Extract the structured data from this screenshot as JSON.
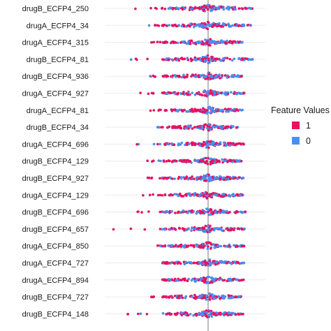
{
  "chart_data": {
    "type": "scatter",
    "subtype": "beeswarm",
    "features": [
      "drugB_ECFP4_250",
      "drugA_ECFP4_34",
      "drugA_ECFP4_315",
      "drugB_ECFP4_81",
      "drugB_ECFP4_936",
      "drugA_ECFP4_927",
      "drugA_ECFP4_81",
      "drugB_ECFP4_34",
      "drugA_ECFP4_696",
      "drugB_ECFP4_129",
      "drugB_ECFP4_927",
      "drugA_ECFP4_129",
      "drugB_ECFP4_696",
      "drugB_ECFP4_657",
      "drugA_ECFP4_850",
      "drugA_ECFP4_727",
      "drugA_ECFP4_894",
      "drugB_ECFP4_727",
      "drugB_ECFP4_148"
    ],
    "xlabel": "",
    "grid": true,
    "zero_line": true,
    "legend": {
      "title": "Feature Values",
      "placement": "right",
      "items": [
        {
          "label": "1",
          "color": "#e8115f"
        },
        {
          "label": "0",
          "color": "#4a8ff0"
        }
      ]
    }
  }
}
